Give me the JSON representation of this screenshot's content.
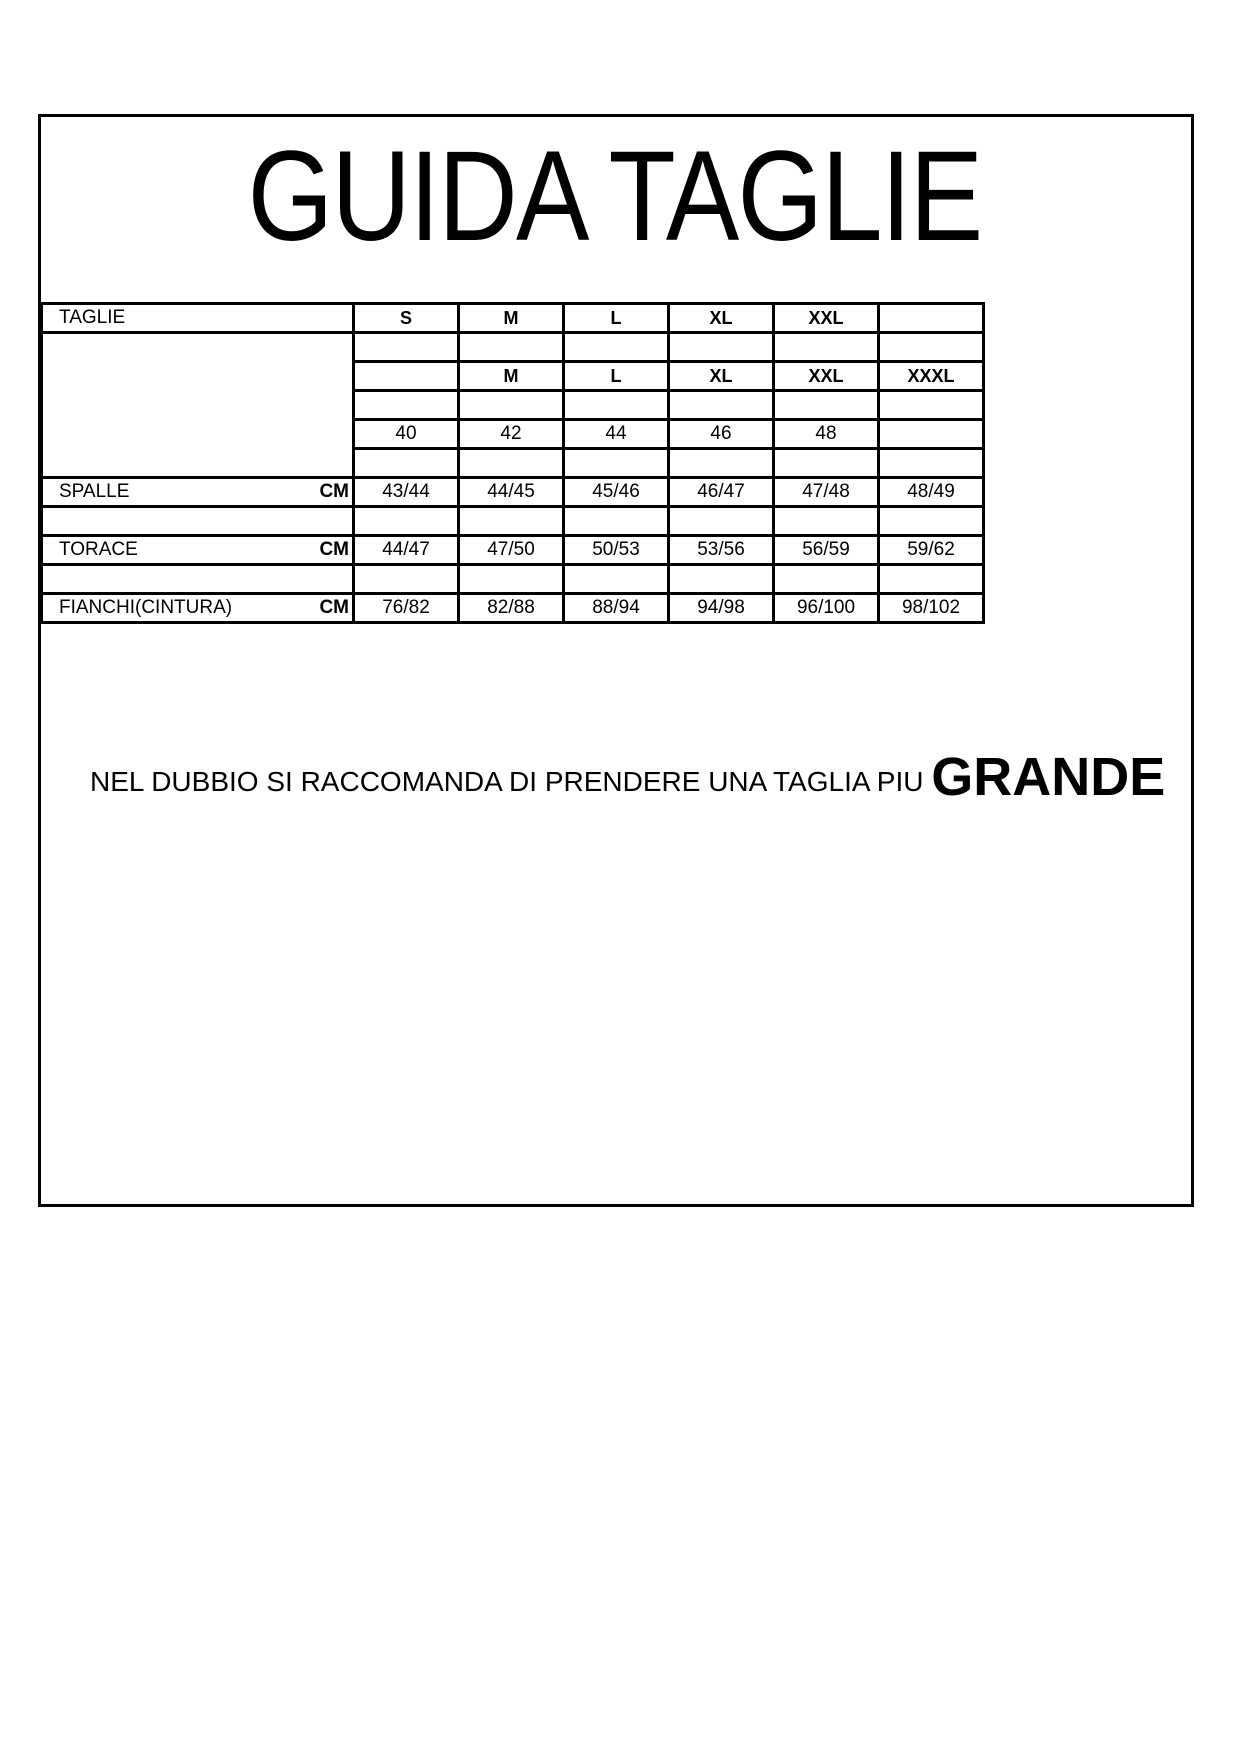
{
  "title": "GUIDA TAGLIE",
  "table": {
    "header_label": "TAGLIE",
    "sizes_row1": [
      "S",
      "M",
      "L",
      "XL",
      "XXL",
      ""
    ],
    "sizes_row2": [
      "",
      "M",
      "L",
      "XL",
      "XXL",
      "XXXL"
    ],
    "sizes_numeric": [
      "40",
      "42",
      "44",
      "46",
      "48",
      ""
    ],
    "unit": "CM",
    "measures": [
      {
        "label": "SPALLE",
        "values": [
          "43/44",
          "44/45",
          "45/46",
          "46/47",
          "47/48",
          "48/49"
        ]
      },
      {
        "label": "TORACE",
        "values": [
          "44/47",
          "47/50",
          "50/53",
          "53/56",
          "56/59",
          "59/62"
        ]
      },
      {
        "label": "FIANCHI(CINTURA)",
        "values": [
          "76/82",
          "82/88",
          "88/94",
          "94/98",
          "96/100",
          "98/102"
        ]
      }
    ]
  },
  "note": {
    "text": "NEL DUBBIO SI RACCOMANDA DI PRENDERE UNA TAGLIA PIU",
    "emphasis": "GRANDE"
  }
}
